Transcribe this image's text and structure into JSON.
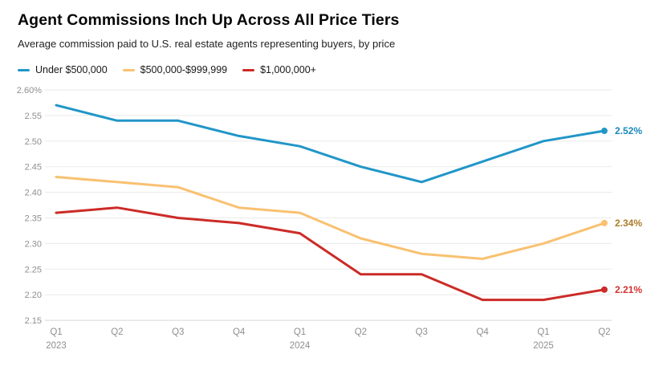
{
  "chart_data": {
    "type": "line",
    "title": "Agent Commissions Inch Up Across All Price Tiers",
    "subtitle": "Average commission paid to U.S. real estate agents representing buyers, by price",
    "categories": [
      "Q1 2023",
      "Q2 2023",
      "Q3 2023",
      "Q4 2023",
      "Q1 2024",
      "Q2 2024",
      "Q3 2024",
      "Q4 2024",
      "Q1 2025",
      "Q2 2025"
    ],
    "x_tick_labels": [
      "Q1",
      "Q2",
      "Q3",
      "Q4",
      "Q1",
      "Q2",
      "Q3",
      "Q4",
      "Q1",
      "Q2"
    ],
    "x_year_labels": [
      "2023",
      "",
      "",
      "",
      "2024",
      "",
      "",
      "",
      "2025",
      ""
    ],
    "series": [
      {
        "name": "Under $500,000",
        "color": "#2196C8",
        "label_color": "#1B89BD",
        "values": [
          2.57,
          2.54,
          2.54,
          2.51,
          2.49,
          2.45,
          2.42,
          2.46,
          2.5,
          2.52
        ],
        "end_label": "2.52%"
      },
      {
        "name": "$500,000-$999,999",
        "color": "#F9C171",
        "label_color": "#AC7C2B",
        "values": [
          2.43,
          2.42,
          2.41,
          2.37,
          2.36,
          2.31,
          2.28,
          2.27,
          2.3,
          2.34
        ],
        "end_label": "2.34%"
      },
      {
        "name": "$1,000,000+",
        "color": "#CC2B27",
        "label_color": "#D3332F",
        "values": [
          2.36,
          2.37,
          2.35,
          2.34,
          2.32,
          2.24,
          2.24,
          2.19,
          2.19,
          2.21
        ],
        "end_label": "2.21%"
      }
    ],
    "ylim": [
      2.15,
      2.6
    ],
    "y_ticks": [
      2.6,
      2.55,
      2.5,
      2.45,
      2.4,
      2.35,
      2.3,
      2.25,
      2.2,
      2.15
    ],
    "y_tick_labels": [
      "2.60%",
      "2.55",
      "2.50",
      "2.45",
      "2.40",
      "2.35",
      "2.30",
      "2.25",
      "2.20",
      "2.15"
    ],
    "grid": true,
    "legend_position": "top-left",
    "xlabel": "",
    "ylabel": ""
  },
  "colors": {
    "background": "#FFFFFF",
    "grid": "#EAEAEA",
    "grid_bottom": "#D8D8D8",
    "axis_text": "#8F8F8F",
    "title": "#060606",
    "subtitle": "#1F1F1F",
    "legend_text": "#191919"
  }
}
